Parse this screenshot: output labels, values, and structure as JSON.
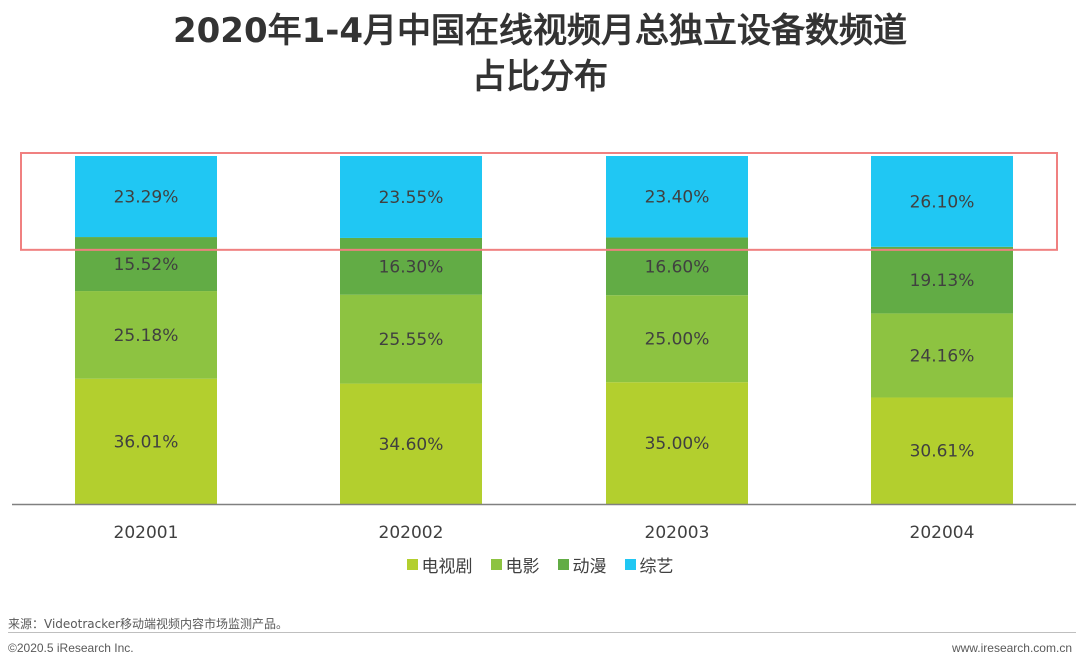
{
  "title_lines": [
    "2020年1-4月中国在线视频月总独立设备数频道",
    "占比分布"
  ],
  "chart_data": {
    "type": "bar",
    "stacked": true,
    "categories": [
      "202001",
      "202002",
      "202003",
      "202004"
    ],
    "series": [
      {
        "name": "电视剧",
        "color": "#b3cf2e",
        "values": [
          36.01,
          34.6,
          35.0,
          30.61
        ]
      },
      {
        "name": "电影",
        "color": "#8dc341",
        "values": [
          25.18,
          25.55,
          25.0,
          24.16
        ]
      },
      {
        "name": "动漫",
        "color": "#62ac45",
        "values": [
          15.52,
          16.3,
          16.6,
          19.13
        ]
      },
      {
        "name": "综艺",
        "color": "#20c7f3",
        "values": [
          23.29,
          23.55,
          23.4,
          26.1
        ]
      }
    ],
    "highlight_series": "综艺",
    "highlight_color": "#f08080",
    "value_suffix": "%",
    "legend_position": "bottom"
  },
  "source": "来源：Videotracker移动端视频内容市场监测产品。",
  "copyright": "©2020.5 iResearch Inc.",
  "website": "www.iresearch.com.cn"
}
